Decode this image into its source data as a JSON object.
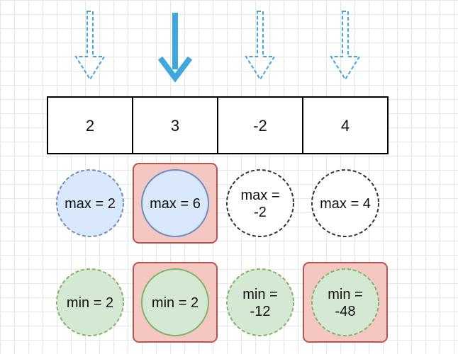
{
  "array": {
    "values": [
      "2",
      "3",
      "-2",
      "4"
    ],
    "current_index": 1
  },
  "max_row": [
    {
      "label": [
        "max = 2"
      ],
      "fill": "#dae8fc",
      "dashed": true,
      "highlight": false
    },
    {
      "label": [
        "max = 6"
      ],
      "fill": "#dae8fc",
      "dashed": false,
      "highlight": true
    },
    {
      "label": [
        "max =",
        "-2"
      ],
      "fill": "#ffffff",
      "dashed": true,
      "highlight": false
    },
    {
      "label": [
        "max = 4"
      ],
      "fill": "#ffffff",
      "dashed": true,
      "highlight": false
    }
  ],
  "min_row": [
    {
      "label": [
        "min = 2"
      ],
      "fill": "#d5e8d4",
      "dashed": true,
      "highlight": false
    },
    {
      "label": [
        "min = 2"
      ],
      "fill": "#d5e8d4",
      "dashed": false,
      "highlight": true
    },
    {
      "label": [
        "min =",
        "-12"
      ],
      "fill": "#d5e8d4",
      "dashed": true,
      "highlight": false
    },
    {
      "label": [
        "min =",
        "-48"
      ],
      "fill": "#d5e8d4",
      "dashed": true,
      "highlight": true
    }
  ],
  "colors": {
    "arrow": "#3fa7dc",
    "highlight_fill": "#f4c7c3",
    "highlight_stroke": "#b85450",
    "max_stroke": "#6c8ebf",
    "min_stroke": "#82b366",
    "empty_stroke": "#333333"
  }
}
